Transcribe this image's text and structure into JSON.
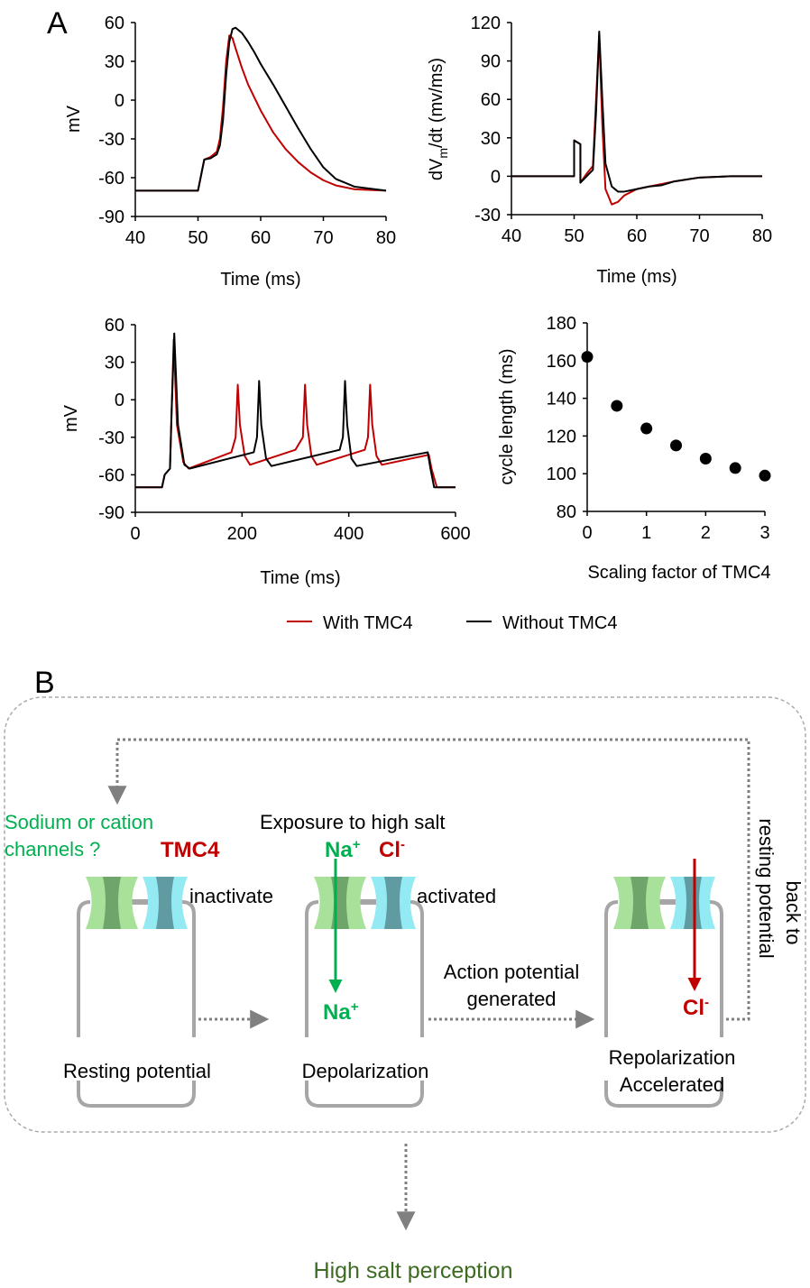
{
  "panel_labels": [
    "A",
    "B"
  ],
  "chart_data": [
    {
      "type": "line",
      "xlabel": "Time (ms)",
      "ylabel": "mV",
      "x": [
        40,
        50,
        50.5,
        51,
        52,
        53,
        53.5,
        54,
        54.5,
        55,
        55.5,
        56,
        57,
        58,
        59,
        60,
        62,
        64,
        66,
        68,
        70,
        72,
        75,
        80
      ],
      "series": [
        {
          "name": "With TMC4",
          "color": "#c00000",
          "values": [
            -70,
            -70,
            -58,
            -46,
            -44,
            -40,
            -30,
            -5,
            30,
            50,
            48,
            40,
            25,
            12,
            2,
            -8,
            -25,
            -38,
            -48,
            -56,
            -62,
            -66,
            -69,
            -70
          ]
        },
        {
          "name": "Without TMC4",
          "color": "#000000",
          "values": [
            -70,
            -70,
            -58,
            -46,
            -45,
            -42,
            -35,
            -15,
            20,
            45,
            55,
            56,
            52,
            45,
            37,
            28,
            12,
            -5,
            -22,
            -38,
            -52,
            -61,
            -67,
            -70
          ]
        }
      ],
      "xlim": [
        40,
        80
      ],
      "xticks": [
        40,
        50,
        60,
        70,
        80
      ],
      "ylim": [
        -90,
        60
      ],
      "yticks": [
        -90,
        -60,
        -30,
        0,
        30,
        60
      ]
    },
    {
      "type": "line",
      "xlabel": "Time (ms)",
      "ylabel": {
        "text": "dV",
        "sub": "m",
        "rest": "/dt (mv/ms)"
      },
      "x": [
        40,
        50,
        50,
        51,
        51,
        52,
        53,
        53.5,
        54,
        54.5,
        55,
        56,
        57,
        58,
        60,
        62,
        64,
        66,
        70,
        75,
        80
      ],
      "series": [
        {
          "color": "#c00000",
          "values": [
            0,
            0,
            28,
            25,
            -5,
            2,
            8,
            60,
            110,
            40,
            -10,
            -22,
            -20,
            -15,
            -10,
            -8,
            -6,
            -4,
            -1,
            0,
            0
          ]
        },
        {
          "color": "#000000",
          "values": [
            0,
            0,
            28,
            25,
            -5,
            0,
            5,
            50,
            113,
            60,
            10,
            -8,
            -12,
            -12,
            -10,
            -8,
            -7,
            -4,
            -1,
            0,
            0
          ]
        }
      ],
      "xlim": [
        40,
        80
      ],
      "xticks": [
        40,
        50,
        60,
        70,
        80
      ],
      "ylim": [
        -30,
        120
      ],
      "yticks": [
        -30,
        0,
        30,
        60,
        90,
        120
      ]
    },
    {
      "type": "line",
      "xlabel": "Time (ms)",
      "ylabel": "mV",
      "series": [
        {
          "color": "#c00000",
          "x": [
            0,
            50,
            55,
            65,
            68,
            72,
            78,
            90,
            100,
            180,
            188,
            192,
            196,
            205,
            215,
            300,
            314,
            318,
            322,
            330,
            340,
            430,
            436,
            440,
            444,
            452,
            462,
            550,
            555,
            565,
            600
          ],
          "values": [
            -70,
            -70,
            -60,
            -55,
            -10,
            48,
            -20,
            -50,
            -55,
            -42,
            -30,
            12,
            -20,
            -45,
            -52,
            -40,
            -30,
            12,
            -20,
            -45,
            -52,
            -40,
            -30,
            12,
            -20,
            -45,
            -52,
            -44,
            -55,
            -70,
            -70
          ]
        },
        {
          "color": "#000000",
          "x": [
            0,
            50,
            55,
            65,
            68,
            73,
            80,
            92,
            102,
            222,
            228,
            232,
            236,
            245,
            255,
            383,
            389,
            393,
            397,
            405,
            415,
            548,
            553,
            560,
            600
          ],
          "values": [
            -70,
            -70,
            -60,
            -55,
            -10,
            53,
            -20,
            -52,
            -55,
            -42,
            -30,
            15,
            -20,
            -47,
            -53,
            -40,
            -30,
            15,
            -20,
            -47,
            -53,
            -42,
            -55,
            -70,
            -70
          ]
        }
      ],
      "xlim": [
        0,
        600
      ],
      "xticks": [
        0,
        200,
        400,
        600
      ],
      "ylim": [
        -90,
        60
      ],
      "yticks": [
        -90,
        -60,
        -30,
        0,
        30,
        60
      ]
    },
    {
      "type": "scatter",
      "xlabel": "Scaling factor of TMC4",
      "ylabel": "cycle length (ms)",
      "color": "#000000",
      "x": [
        0,
        0.5,
        1,
        1.5,
        2,
        2.5,
        3
      ],
      "values": [
        162,
        136,
        124,
        115,
        108,
        103,
        99
      ],
      "xlim": [
        0,
        3
      ],
      "xticks": [
        0,
        1,
        2,
        3
      ],
      "ylim": [
        80,
        180
      ],
      "yticks": [
        80,
        100,
        120,
        140,
        160,
        180
      ]
    }
  ],
  "diagram": {
    "channel_question": [
      "Sodium or cation",
      "channels ?"
    ],
    "tmc4": "TMC4",
    "inactivate": "inactivate",
    "exposure": "Exposure to high salt",
    "na_top": {
      "base": "Na",
      "sup": "+"
    },
    "cl_top": {
      "base": "Cl",
      "sup": "-"
    },
    "activated": "activated",
    "na_bottom": {
      "base": "Na",
      "sup": "+"
    },
    "ap_generated": [
      "Action potential",
      "generated"
    ],
    "cl_bottom": {
      "base": "Cl",
      "sup": "-"
    },
    "back": [
      "back to",
      "resting potential"
    ],
    "resting": "Resting potential",
    "depolarization": "Depolarization",
    "repolarization": [
      "Repolarization",
      "Accelerated"
    ],
    "perception": "High salt perception"
  }
}
